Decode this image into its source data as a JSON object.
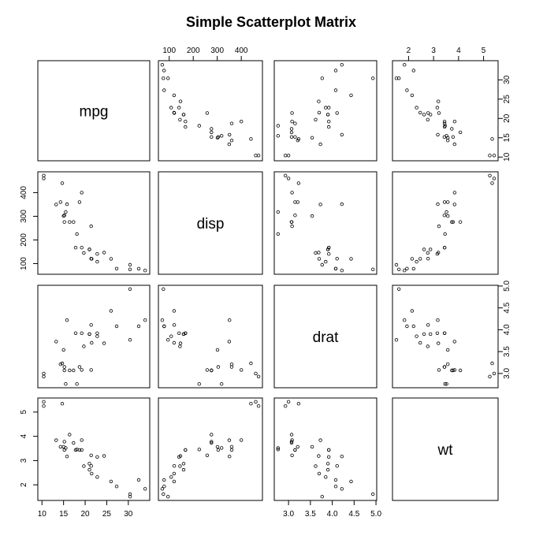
{
  "chart_data": {
    "type": "scatter",
    "title": "Simple Scatterplot Matrix",
    "variables": [
      "mpg",
      "disp",
      "drat",
      "wt"
    ],
    "axes": {
      "mpg": {
        "range": [
          10,
          34
        ],
        "ticks": [
          10,
          15,
          20,
          25,
          30
        ],
        "tick_labels": [
          "10",
          "15",
          "20",
          "25",
          "30"
        ]
      },
      "disp": {
        "range": [
          71,
          472
        ],
        "ticks": [
          100,
          200,
          300,
          400
        ],
        "tick_labels": [
          "100",
          "200",
          "300",
          "400"
        ]
      },
      "drat": {
        "range": [
          2.76,
          4.93
        ],
        "ticks": [
          3.0,
          3.5,
          4.0,
          4.5,
          5.0
        ],
        "tick_labels": [
          "3.0",
          "3.5",
          "4.0",
          "4.5",
          "5.0"
        ]
      },
      "wt": {
        "range": [
          1.513,
          5.424
        ],
        "ticks": [
          2,
          3,
          4,
          5
        ],
        "tick_labels": [
          "2",
          "3",
          "4",
          "5"
        ]
      }
    },
    "data": {
      "mpg": [
        21.0,
        21.0,
        22.8,
        21.4,
        18.7,
        18.1,
        14.3,
        24.4,
        22.8,
        19.2,
        17.8,
        16.4,
        17.3,
        15.2,
        10.4,
        10.4,
        14.7,
        32.4,
        30.4,
        33.9,
        21.5,
        15.5,
        15.2,
        13.3,
        19.2,
        27.3,
        26.0,
        30.4,
        15.8,
        19.7,
        15.0,
        21.4
      ],
      "disp": [
        160,
        160,
        108,
        258,
        360,
        225,
        360,
        146.7,
        140.8,
        167.6,
        167.6,
        275.8,
        275.8,
        275.8,
        472,
        460,
        440,
        78.7,
        75.7,
        71.1,
        120.1,
        318,
        304,
        350,
        400,
        79,
        120.3,
        95.1,
        351,
        145,
        301,
        121
      ],
      "drat": [
        3.9,
        3.9,
        3.85,
        3.08,
        3.15,
        2.76,
        3.21,
        3.69,
        3.92,
        3.92,
        3.92,
        3.07,
        3.07,
        3.07,
        2.93,
        3.0,
        3.23,
        4.08,
        4.93,
        4.22,
        3.7,
        2.76,
        3.15,
        3.73,
        3.08,
        4.08,
        4.43,
        3.77,
        4.22,
        3.62,
        3.54,
        4.11
      ],
      "wt": [
        2.62,
        2.875,
        2.32,
        3.215,
        3.44,
        3.46,
        3.57,
        3.19,
        3.15,
        3.44,
        3.44,
        4.07,
        3.73,
        3.78,
        5.25,
        5.424,
        5.345,
        2.2,
        1.615,
        1.835,
        2.465,
        3.52,
        3.435,
        3.84,
        3.845,
        1.935,
        2.14,
        1.513,
        3.17,
        2.77,
        3.57,
        2.78
      ]
    },
    "tick_sides": {
      "top": [
        1,
        3
      ],
      "bottom": [
        0,
        2
      ],
      "left": [
        1,
        3
      ],
      "right": [
        0,
        2
      ]
    },
    "grid": false,
    "legend": "none"
  }
}
